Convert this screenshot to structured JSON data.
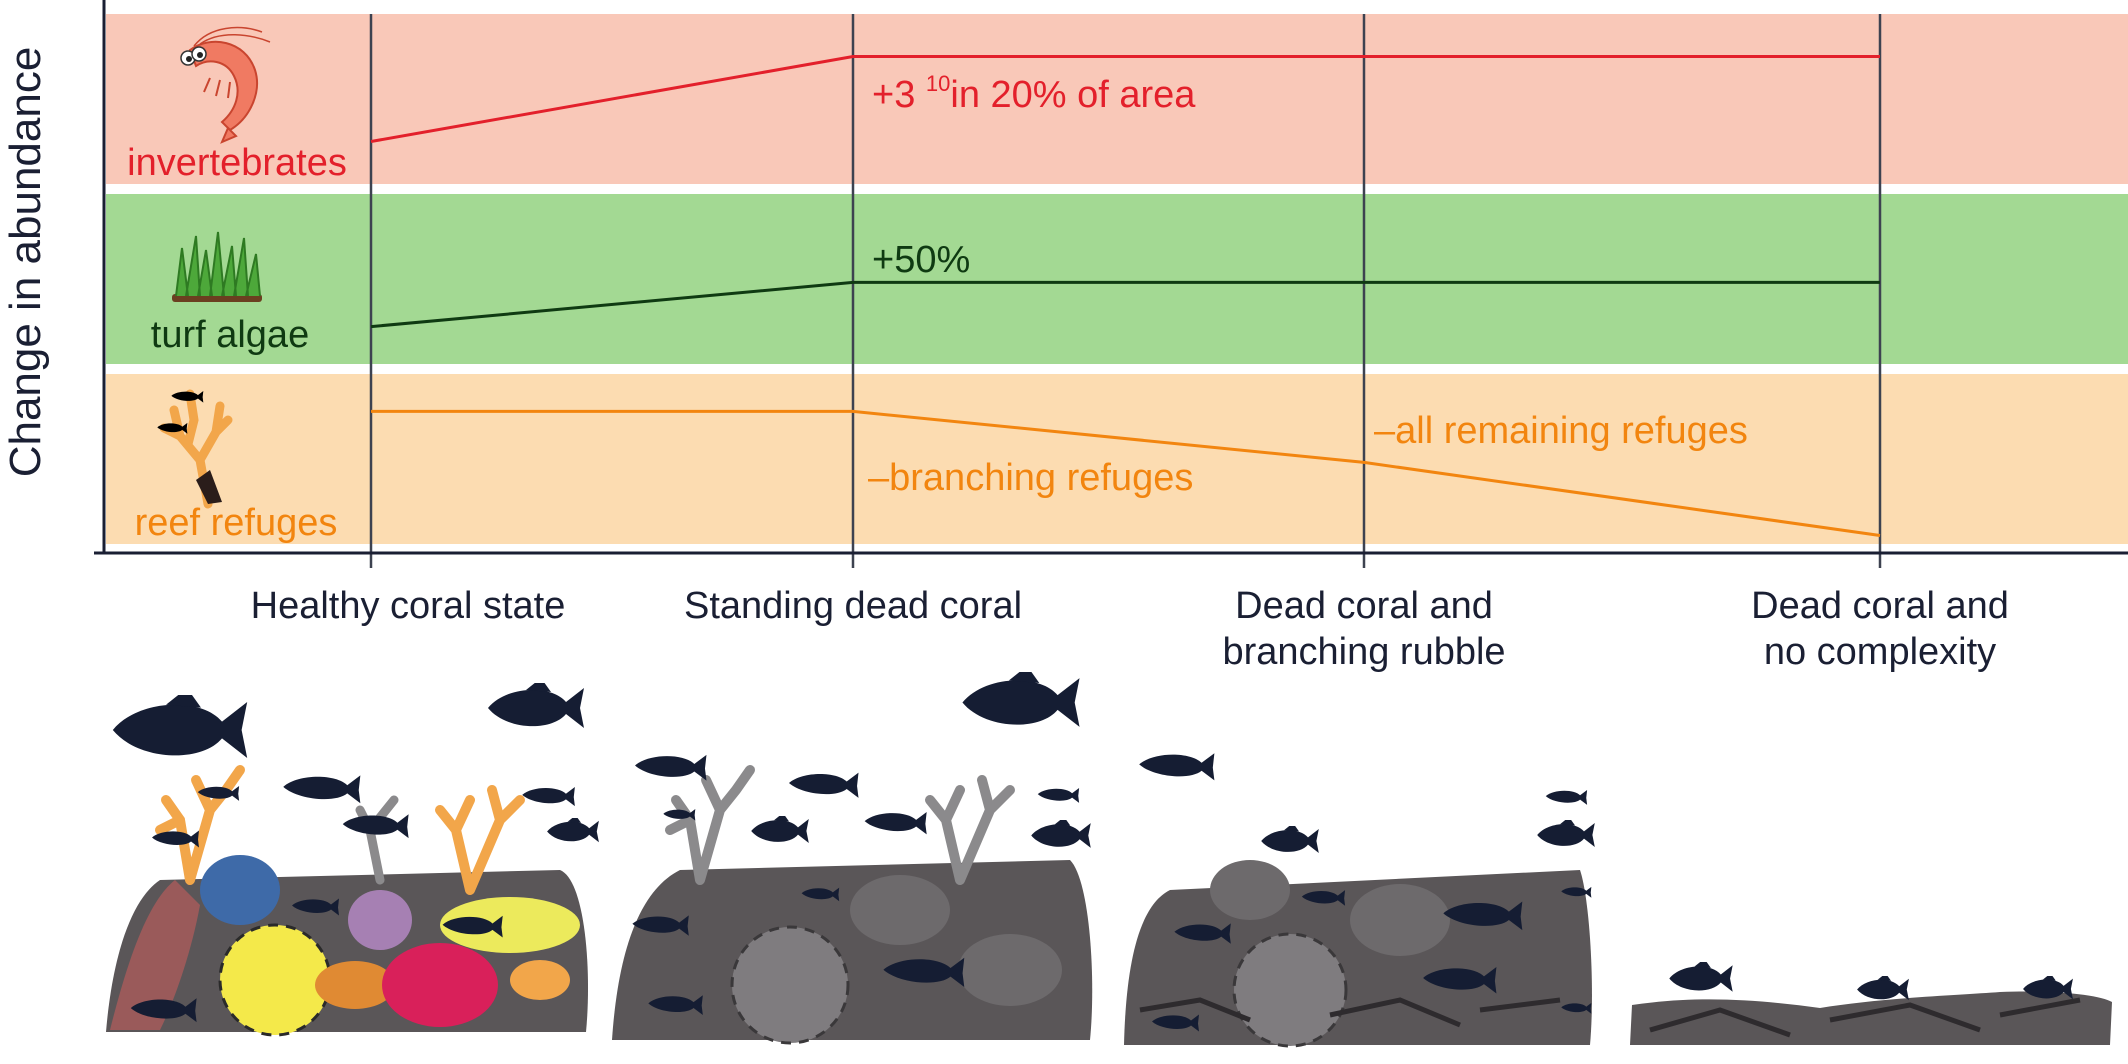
{
  "yaxis_label": "Change in abundance",
  "colors": {
    "invert_band": "#f9c8b8",
    "algae_band": "#a3d993",
    "refuge_band": "#fcdcb1",
    "invert_line": "#e3202b",
    "algae_line": "#0f3a12",
    "refuge_line": "#f2850f",
    "divider": "#3d4250",
    "axis": "#1a1f33",
    "fish": "#151d33",
    "rock": "#5a5658"
  },
  "states": [
    {
      "label_lines": [
        "Healthy coral state"
      ]
    },
    {
      "label_lines": [
        "Standing dead coral"
      ]
    },
    {
      "label_lines": [
        "Dead coral and",
        "branching rubble"
      ]
    },
    {
      "label_lines": [
        "Dead coral and",
        "no complexity"
      ]
    }
  ],
  "rows": {
    "invertebrates": {
      "name": "invertebrates",
      "icon": "shrimp-icon",
      "annotation_main": "+3 ",
      "annotation_sup": "10",
      "annotation_rest": "in 20% of area"
    },
    "turf_algae": {
      "name": "turf algae",
      "icon": "grass-icon",
      "annotation": "+50%"
    },
    "reef_refuges": {
      "name": "reef refuges",
      "icon": "branching-coral-icon",
      "annotation_1": "–branching refuges",
      "annotation_2": "–all remaining refuges"
    }
  },
  "chart_data": {
    "type": "line",
    "x": [
      "Healthy coral state",
      "Standing dead coral",
      "Dead coral and branching rubble",
      "Dead coral and no complexity"
    ],
    "series": [
      {
        "name": "invertebrates",
        "values": [
          0.25,
          0.75,
          0.75,
          0.75
        ]
      },
      {
        "name": "turf algae",
        "values": [
          0.22,
          0.48,
          0.48,
          0.48
        ]
      },
      {
        "name": "reef refuges",
        "values": [
          0.78,
          0.78,
          0.48,
          0.05
        ]
      }
    ],
    "annotations": [
      "+3 10 in 20% of area",
      "+50%",
      "–branching refuges",
      "–all remaining refuges"
    ]
  }
}
